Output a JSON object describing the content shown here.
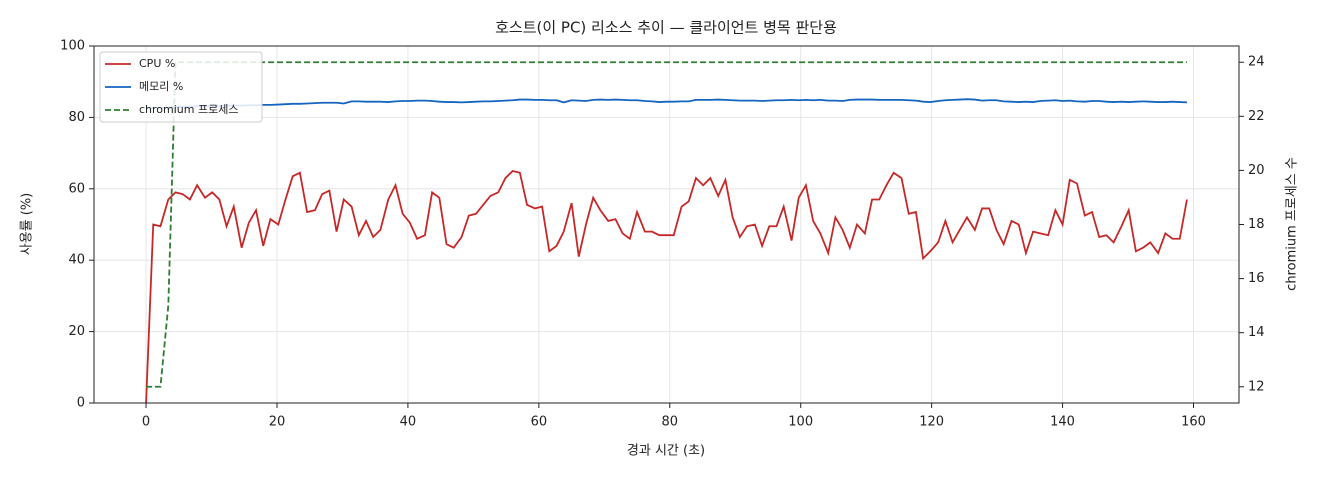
{
  "chart_data": {
    "type": "line",
    "title": "호스트(이 PC) 리소스 추이 — 클라이언트 병목 판단용",
    "x_label": "경과 시간 (초)",
    "y_label": "사용률 (%)",
    "y2_label": "chromium 프로세스 수",
    "x": [
      0,
      1.1,
      2.2,
      3.4,
      4.5,
      5.6,
      6.7,
      7.8,
      9.0,
      10.1,
      11.2,
      12.3,
      13.4,
      14.6,
      15.7,
      16.8,
      17.9,
      19.0,
      20.2,
      21.3,
      22.4,
      23.5,
      24.6,
      25.8,
      26.9,
      28.0,
      29.1,
      30.2,
      31.4,
      32.5,
      33.6,
      34.7,
      35.8,
      37.0,
      38.1,
      39.2,
      40.3,
      41.4,
      42.6,
      43.7,
      44.8,
      45.9,
      47.0,
      48.2,
      49.3,
      50.4,
      51.5,
      52.6,
      53.8,
      54.9,
      56.0,
      57.1,
      58.2,
      59.4,
      60.5,
      61.6,
      62.7,
      63.8,
      65.0,
      66.1,
      67.2,
      68.3,
      69.4,
      70.6,
      71.7,
      72.8,
      73.9,
      75.0,
      76.2,
      77.3,
      78.4,
      79.5,
      80.6,
      81.8,
      82.9,
      84.0,
      85.1,
      86.2,
      87.4,
      88.5,
      89.6,
      90.7,
      91.8,
      93.0,
      94.1,
      95.2,
      96.3,
      97.4,
      98.6,
      99.7,
      100.8,
      101.9,
      103.0,
      104.2,
      105.3,
      106.4,
      107.5,
      108.6,
      109.8,
      110.9,
      112.0,
      113.1,
      114.2,
      115.4,
      116.5,
      117.6,
      118.7,
      119.8,
      121.0,
      122.1,
      123.2,
      124.3,
      125.4,
      126.6,
      127.7,
      128.8,
      129.9,
      131.0,
      132.2,
      133.3,
      134.4,
      135.5,
      136.6,
      137.8,
      138.9,
      140.0,
      141.1,
      142.2,
      143.4,
      144.5,
      145.6,
      146.7,
      147.8,
      149.0,
      150.1,
      151.2,
      152.3,
      153.4,
      154.6,
      155.7,
      156.8,
      157.9,
      159.0
    ],
    "series": [
      {
        "name": "CPU %",
        "color": "#c62828",
        "linestyle": "solid",
        "axis": "y",
        "values": [
          0,
          50,
          49.5,
          57,
          59,
          58.5,
          57,
          61,
          57.5,
          59,
          57,
          49.5,
          55,
          43.5,
          50.5,
          54,
          44,
          51.5,
          50,
          57,
          63.5,
          64.5,
          53.5,
          54,
          58.5,
          59.5,
          48,
          57,
          55,
          47,
          51,
          46.5,
          48.5,
          57,
          61,
          53,
          50.5,
          46,
          47,
          59,
          57.5,
          44.5,
          43.5,
          46.5,
          52.5,
          53,
          55.5,
          58,
          59,
          63,
          65,
          64.5,
          55.5,
          54.5,
          55,
          42.5,
          44,
          48,
          56,
          41,
          50,
          57.5,
          54,
          51,
          51.5,
          47.5,
          46,
          53.5,
          48,
          48,
          47,
          47,
          47,
          55,
          56.5,
          63,
          61,
          63,
          58,
          62.5,
          52,
          46.5,
          49.5,
          50,
          44,
          49.5,
          49.5,
          55,
          45.5,
          57.5,
          61,
          51,
          47.5,
          42,
          52,
          48.5,
          43.5,
          50,
          47.5,
          57,
          57,
          61,
          64.5,
          63,
          53,
          53.5,
          40.5,
          42.5,
          45,
          51,
          45,
          48.5,
          52,
          48.5,
          54.5,
          54.5,
          48.5,
          44.5,
          51,
          50,
          42,
          48,
          47.5,
          47,
          54,
          50,
          62.5,
          61.5,
          52.5,
          53.5,
          46.5,
          47,
          45,
          49.5,
          54,
          42.5,
          43.5,
          45,
          42,
          47.5,
          46,
          46,
          57
        ]
      },
      {
        "name": "메모리 %",
        "color": "#1565c0",
        "linestyle": "solid",
        "axis": "y",
        "values": [
          82.5,
          82.6,
          82.7,
          82.8,
          82.9,
          83,
          83,
          83.1,
          83.1,
          83.2,
          83.2,
          83.3,
          83.3,
          83.3,
          83.4,
          83.4,
          83.5,
          83.5,
          83.6,
          83.7,
          83.8,
          83.8,
          83.9,
          84,
          84.1,
          84.1,
          84.1,
          83.9,
          84.5,
          84.5,
          84.4,
          84.4,
          84.4,
          84.3,
          84.5,
          84.6,
          84.6,
          84.7,
          84.7,
          84.6,
          84.4,
          84.3,
          84.3,
          84.2,
          84.3,
          84.4,
          84.5,
          84.5,
          84.6,
          84.7,
          84.8,
          85,
          85,
          84.9,
          84.9,
          84.8,
          84.8,
          84.2,
          84.8,
          84.7,
          84.6,
          84.9,
          85,
          84.9,
          85,
          84.9,
          84.8,
          84.8,
          84.6,
          84.5,
          84.3,
          84.4,
          84.4,
          84.5,
          84.5,
          84.9,
          84.9,
          84.9,
          85,
          84.9,
          84.8,
          84.7,
          84.7,
          84.7,
          84.6,
          84.7,
          84.8,
          84.8,
          84.9,
          84.8,
          84.9,
          84.8,
          84.9,
          84.7,
          84.7,
          84.6,
          84.9,
          85,
          85,
          85,
          84.9,
          84.9,
          84.9,
          84.9,
          84.8,
          84.7,
          84.4,
          84.3,
          84.6,
          84.8,
          84.9,
          85,
          85.1,
          85,
          84.7,
          84.8,
          84.8,
          84.5,
          84.4,
          84.3,
          84.4,
          84.3,
          84.6,
          84.7,
          84.8,
          84.6,
          84.7,
          84.5,
          84.4,
          84.6,
          84.6,
          84.4,
          84.3,
          84.4,
          84.3,
          84.4,
          84.5,
          84.4,
          84.3,
          84.3,
          84.4,
          84.3,
          84.2
        ]
      },
      {
        "name": "chromium 프로세스",
        "color": "#2e7d32",
        "linestyle": "dashed",
        "axis": "y2",
        "values": [
          12,
          12,
          12,
          15,
          24,
          24,
          24,
          24,
          24,
          24,
          24,
          24,
          24,
          24,
          24,
          24,
          24,
          24,
          24,
          24,
          24,
          24,
          24,
          24,
          24,
          24,
          24,
          24,
          24,
          24,
          24,
          24,
          24,
          24,
          24,
          24,
          24,
          24,
          24,
          24,
          24,
          24,
          24,
          24,
          24,
          24,
          24,
          24,
          24,
          24,
          24,
          24,
          24,
          24,
          24,
          24,
          24,
          24,
          24,
          24,
          24,
          24,
          24,
          24,
          24,
          24,
          24,
          24,
          24,
          24,
          24,
          24,
          24,
          24,
          24,
          24,
          24,
          24,
          24,
          24,
          24,
          24,
          24,
          24,
          24,
          24,
          24,
          24,
          24,
          24,
          24,
          24,
          24,
          24,
          24,
          24,
          24,
          24,
          24,
          24,
          24,
          24,
          24,
          24,
          24,
          24,
          24,
          24,
          24,
          24,
          24,
          24,
          24,
          24,
          24,
          24,
          24,
          24,
          24,
          24,
          24,
          24,
          24,
          24,
          24,
          24,
          24,
          24,
          24,
          24,
          24,
          24,
          24,
          24,
          24,
          24,
          24,
          24,
          24,
          24,
          24,
          24,
          24
        ]
      }
    ],
    "xlim": [
      -7.95,
      166.95
    ],
    "xticks": [
      0,
      20,
      40,
      60,
      80,
      100,
      120,
      140,
      160
    ],
    "ylim": [
      0,
      100
    ],
    "yticks": [
      0,
      20,
      40,
      60,
      80,
      100
    ],
    "y2lim": [
      11.4,
      24.6
    ],
    "y2ticks": [
      12,
      14,
      16,
      18,
      20,
      22,
      24
    ],
    "grid": true,
    "legend": "upper left"
  }
}
